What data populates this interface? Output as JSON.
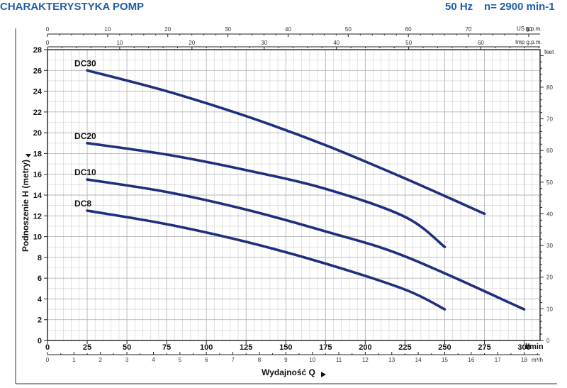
{
  "header": {
    "title": "CHARAKTERYSTYKA POMP",
    "frequency": "50 Hz",
    "speed": "n= 2900 min-1"
  },
  "chart_data": {
    "type": "line",
    "xlabel": "Wydajność Q",
    "ylabel": "Podnoszenie H (metry)",
    "x_unit_main": "l/min",
    "x_unit_m3h": "m³/h",
    "x_unit_usgpm": "US g.p.m.",
    "x_unit_impgpm": "Imp g.p.m.",
    "y_unit_right": "feet",
    "xlim": [
      0,
      310
    ],
    "ylim": [
      0,
      28
    ],
    "grid": true,
    "x_ticks_lmin": [
      0,
      25,
      50,
      75,
      100,
      125,
      150,
      175,
      200,
      225,
      250,
      275,
      300
    ],
    "x_ticks_m3h": [
      0,
      1,
      2,
      3,
      4,
      5,
      6,
      7,
      8,
      9,
      10,
      11,
      12,
      13,
      14,
      15,
      16,
      17,
      18
    ],
    "x_ticks_usgpm": [
      0,
      10,
      20,
      30,
      40,
      50,
      60,
      70,
      80
    ],
    "x_ticks_impgpm": [
      0,
      10,
      20,
      30,
      40,
      50,
      60
    ],
    "y_ticks_m": [
      0,
      2,
      4,
      6,
      8,
      10,
      12,
      14,
      16,
      18,
      20,
      22,
      24,
      26,
      28
    ],
    "y_ticks_feet": [
      0,
      10,
      20,
      30,
      40,
      50,
      60,
      70,
      80
    ],
    "series": [
      {
        "name": "DC30",
        "x": [
          25,
          75,
          125,
          175,
          225,
          275
        ],
        "y": [
          26.0,
          24.0,
          21.6,
          18.8,
          15.6,
          12.2
        ]
      },
      {
        "name": "DC20",
        "x": [
          25,
          75,
          125,
          175,
          225,
          250
        ],
        "y": [
          19.0,
          17.9,
          16.4,
          14.6,
          11.9,
          9.0
        ]
      },
      {
        "name": "DC10",
        "x": [
          25,
          75,
          125,
          175,
          225,
          300
        ],
        "y": [
          15.5,
          14.3,
          12.6,
          10.5,
          8.1,
          3.0
        ]
      },
      {
        "name": "DC8",
        "x": [
          25,
          75,
          125,
          175,
          225,
          250
        ],
        "y": [
          12.5,
          11.2,
          9.5,
          7.4,
          4.9,
          3.0
        ]
      }
    ],
    "colors": {
      "curve": "#1f2f7e",
      "grid": "#cfcfcf",
      "header": "#1f5fa8"
    }
  }
}
